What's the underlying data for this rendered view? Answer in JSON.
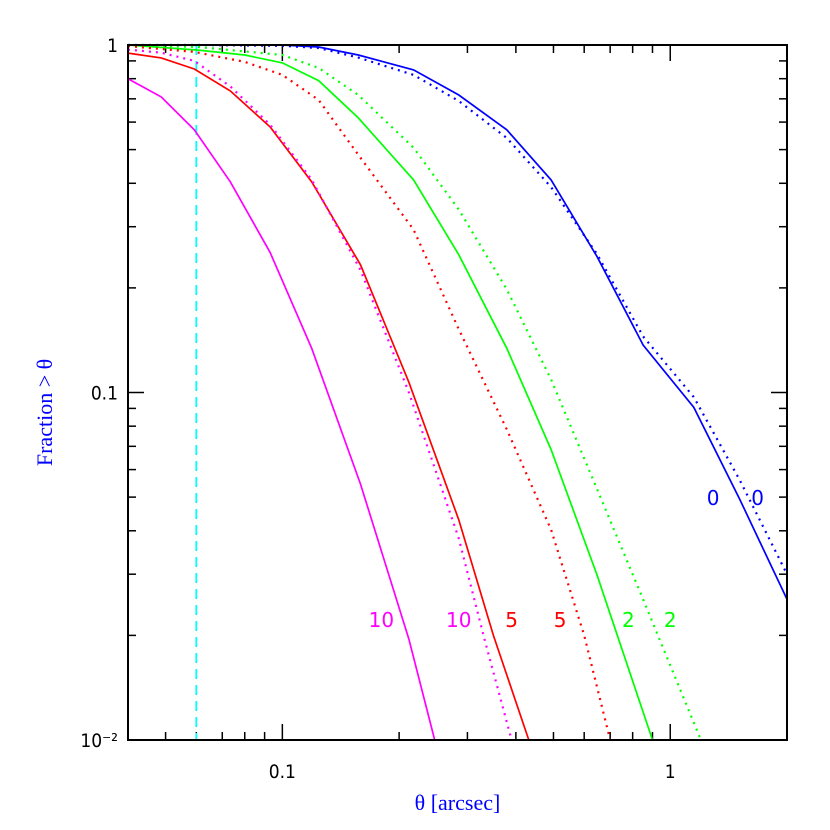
{
  "chart_data": {
    "type": "line",
    "title": "",
    "xlabel": "θ [arcsec]",
    "ylabel": "Fraction > θ",
    "xscale": "log",
    "yscale": "log",
    "xlim": [
      0.04,
      2.0
    ],
    "ylim": [
      0.01,
      1
    ],
    "grid": false,
    "x_tick_labels": [
      {
        "value": 0.1,
        "label": "0.1"
      },
      {
        "value": 1,
        "label": "1"
      }
    ],
    "y_tick_labels": [
      {
        "value": 1,
        "label": "1"
      },
      {
        "value": 0.1,
        "label": "0.1"
      },
      {
        "value": 0.01,
        "label": "10⁻²"
      }
    ],
    "reference_line": {
      "x": 0.06,
      "color": "#00ffff",
      "style": "dashed"
    },
    "series": [
      {
        "color": "#0000ff",
        "style": "solid",
        "x": [
          0.04,
          0.0607,
          0.1,
          0.124,
          0.157,
          0.218,
          0.285,
          0.379,
          0.493,
          0.648,
          0.851,
          1.15,
          1.51,
          2.0
        ],
        "y": [
          1,
          1,
          1,
          0.987,
          0.936,
          0.848,
          0.718,
          0.57,
          0.409,
          0.246,
          0.137,
          0.0906,
          0.0493,
          0.0254
        ]
      },
      {
        "color": "#0000ff",
        "style": "dotted",
        "x": [
          0.04,
          0.0607,
          0.1,
          0.124,
          0.157,
          0.218,
          0.285,
          0.379,
          0.493,
          0.648,
          0.851,
          1.15,
          1.51,
          2.0
        ],
        "y": [
          1,
          1,
          0.995,
          0.98,
          0.92,
          0.82,
          0.69,
          0.54,
          0.39,
          0.25,
          0.145,
          0.097,
          0.056,
          0.03
        ]
      },
      {
        "color": "#00ff00",
        "style": "solid",
        "x": [
          0.04,
          0.0607,
          0.08,
          0.1,
          0.124,
          0.157,
          0.218,
          0.285,
          0.379,
          0.493,
          0.648,
          0.9
        ],
        "y": [
          1,
          0.967,
          0.936,
          0.888,
          0.79,
          0.617,
          0.409,
          0.249,
          0.134,
          0.0685,
          0.0298,
          0.01
        ]
      },
      {
        "color": "#00ff00",
        "style": "dotted",
        "x": [
          0.04,
          0.0607,
          0.1,
          0.124,
          0.157,
          0.218,
          0.285,
          0.379,
          0.493,
          0.648,
          0.851,
          1.2
        ],
        "y": [
          1,
          0.987,
          0.936,
          0.859,
          0.718,
          0.506,
          0.336,
          0.198,
          0.109,
          0.0527,
          0.0254,
          0.01
        ]
      },
      {
        "color": "#ff0000",
        "style": "solid",
        "x": [
          0.04,
          0.0487,
          0.0593,
          0.0734,
          0.093,
          0.119,
          0.159,
          0.212,
          0.285,
          0.35,
          0.432
        ],
        "y": [
          0.948,
          0.918,
          0.853,
          0.738,
          0.581,
          0.404,
          0.233,
          0.107,
          0.043,
          0.02,
          0.01
        ]
      },
      {
        "color": "#ff0000",
        "style": "dotted",
        "x": [
          0.04,
          0.0593,
          0.08,
          0.1,
          0.124,
          0.157,
          0.218,
          0.285,
          0.379,
          0.493,
          0.6,
          0.7
        ],
        "y": [
          0.993,
          0.955,
          0.894,
          0.82,
          0.695,
          0.483,
          0.294,
          0.152,
          0.0783,
          0.0403,
          0.02,
          0.01
        ]
      },
      {
        "color": "#ff00ff",
        "style": "solid",
        "x": [
          0.04,
          0.0487,
          0.0593,
          0.0734,
          0.093,
          0.119,
          0.159,
          0.212,
          0.247
        ],
        "y": [
          0.8,
          0.709,
          0.57,
          0.404,
          0.253,
          0.134,
          0.0545,
          0.0195,
          0.01
        ]
      },
      {
        "color": "#ff00ff",
        "style": "dotted",
        "x": [
          0.04,
          0.0487,
          0.0593,
          0.0734,
          0.093,
          0.119,
          0.159,
          0.212,
          0.285,
          0.33,
          0.39
        ],
        "y": [
          0.97,
          0.95,
          0.9,
          0.76,
          0.59,
          0.41,
          0.225,
          0.1,
          0.038,
          0.02,
          0.01
        ]
      }
    ],
    "annotations": [
      {
        "text": "0",
        "x": 1.29,
        "y": 0.05,
        "color": "#0000ff"
      },
      {
        "text": "0",
        "x": 1.68,
        "y": 0.05,
        "color": "#0000ff"
      },
      {
        "text": "2",
        "x": 0.78,
        "y": 0.0223,
        "color": "#00ff00"
      },
      {
        "text": "2",
        "x": 1.0,
        "y": 0.0223,
        "color": "#00ff00"
      },
      {
        "text": "5",
        "x": 0.39,
        "y": 0.0223,
        "color": "#ff0000"
      },
      {
        "text": "5",
        "x": 0.52,
        "y": 0.0223,
        "color": "#ff0000"
      },
      {
        "text": "10",
        "x": 0.18,
        "y": 0.0223,
        "color": "#ff00ff"
      },
      {
        "text": "10",
        "x": 0.285,
        "y": 0.0223,
        "color": "#ff00ff"
      }
    ]
  }
}
